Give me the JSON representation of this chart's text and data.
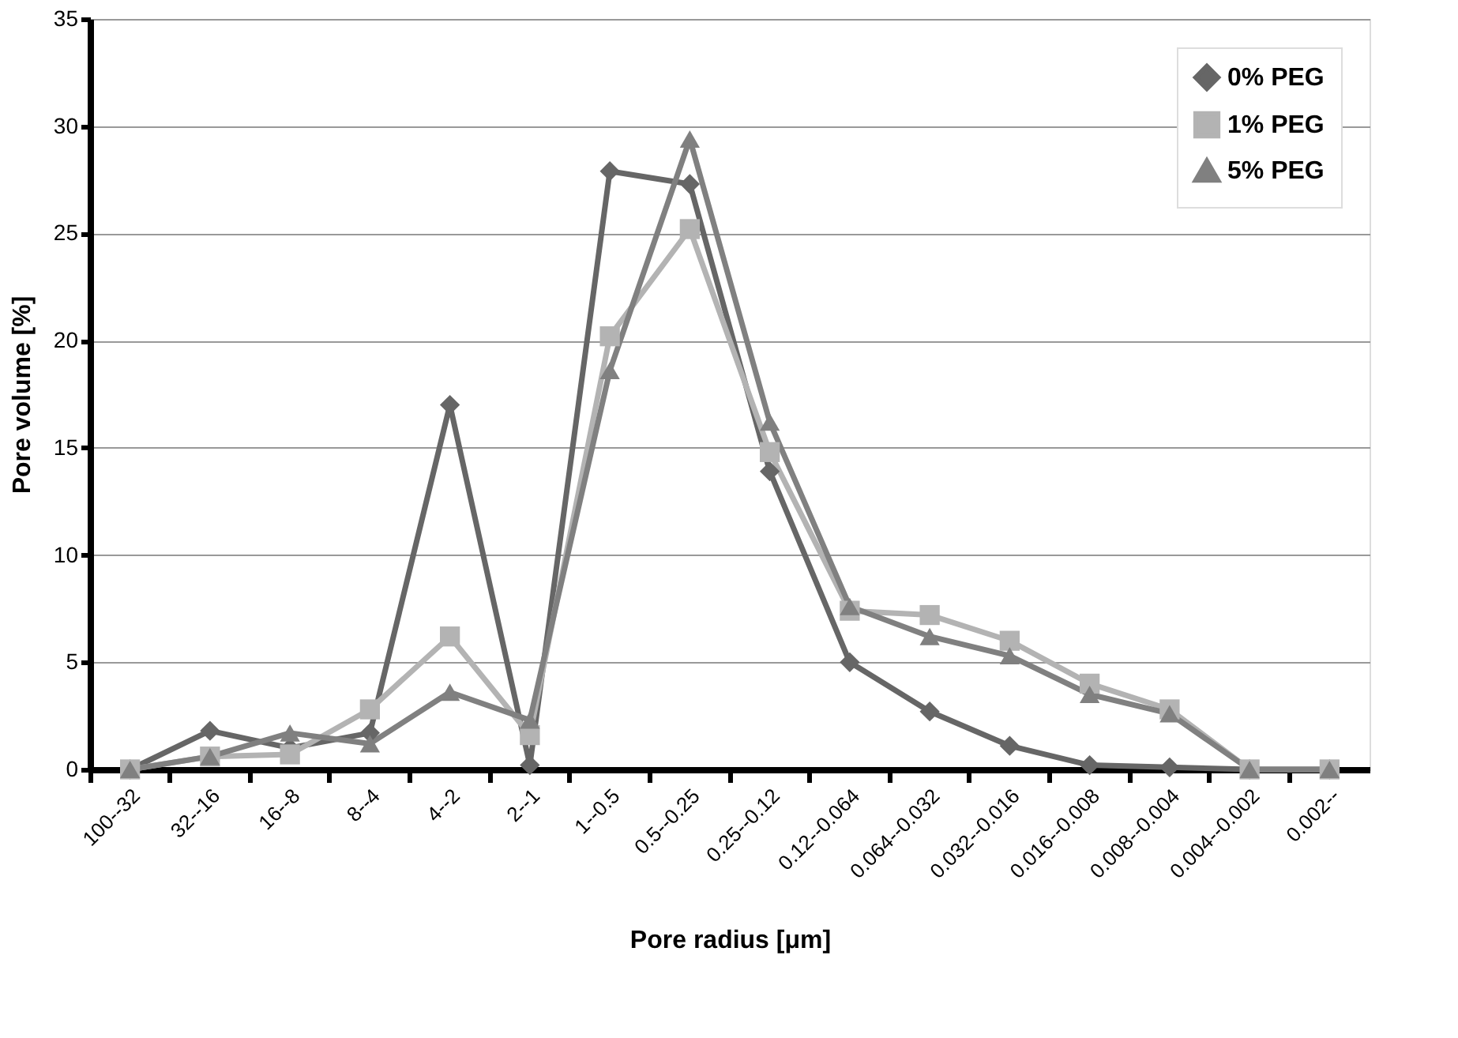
{
  "chart_data": {
    "type": "line",
    "xlabel": "Pore radius [μm]",
    "ylabel": "Pore volume [%]",
    "categories": [
      "100--32",
      "32--16",
      "16--8",
      "8--4",
      "4--2",
      "2--1",
      "1--0.5",
      "0.5--0.25",
      "0.25--0.12",
      "0.12--0.064",
      "0.064--0.032",
      "0.032--0.016",
      "0.016--0.008",
      "0.008--0.004",
      "0.004--0.002",
      "0.002--"
    ],
    "series": [
      {
        "name": "0% PEG",
        "color": "#666666",
        "marker": "diamond",
        "values": [
          0,
          1.8,
          1.0,
          1.7,
          17.0,
          0.2,
          27.9,
          27.3,
          13.9,
          5.0,
          2.7,
          1.1,
          0.2,
          0.1,
          0,
          0
        ]
      },
      {
        "name": "1% PEG",
        "color": "#b3b3b3",
        "marker": "square",
        "values": [
          0,
          0.6,
          0.7,
          2.8,
          6.2,
          1.6,
          20.2,
          25.2,
          14.8,
          7.4,
          7.2,
          6.0,
          4.0,
          2.8,
          0,
          0
        ]
      },
      {
        "name": "5% PEG",
        "color": "#808080",
        "marker": "triangle",
        "values": [
          0,
          0.6,
          1.7,
          1.2,
          3.6,
          2.3,
          18.6,
          29.4,
          16.2,
          7.6,
          6.2,
          5.3,
          3.5,
          2.6,
          0,
          0
        ]
      }
    ],
    "ylim": [
      0,
      35
    ],
    "yticks": [
      0,
      5,
      10,
      15,
      20,
      25,
      30,
      35
    ],
    "grid": "y",
    "legend": "top right",
    "line_style": "solid"
  }
}
